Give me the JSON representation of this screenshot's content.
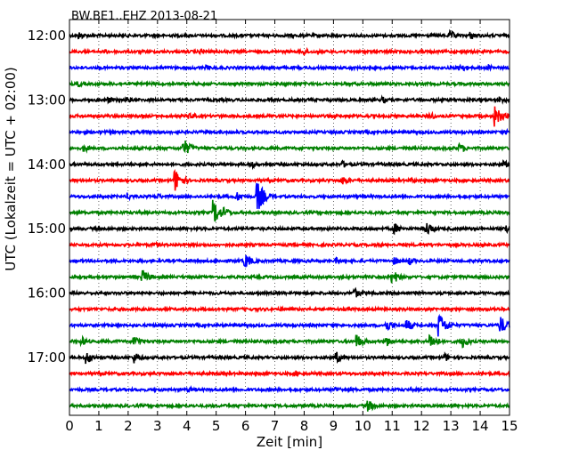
{
  "chart_data": {
    "type": "line",
    "title": "BW.BE1..EHZ 2013-08-21",
    "xlabel": "Zeit  [min]",
    "ylabel": "UTC (Lokalzeit = UTC + 02:00)",
    "xlim": [
      0,
      15
    ],
    "xticks": [
      "0",
      "1",
      "2",
      "3",
      "4",
      "5",
      "6",
      "7",
      "8",
      "9",
      "10",
      "11",
      "12",
      "13",
      "14",
      "15"
    ],
    "ytick_labels": [
      "12:00",
      "13:00",
      "14:00",
      "15:00",
      "16:00",
      "17:00"
    ],
    "grid": "vertical dotted",
    "colors": [
      "#000000",
      "#ff0000",
      "#0000ff",
      "#008000"
    ],
    "trace_interval_min": 15,
    "series": [
      {
        "start": "12:00",
        "color": "#000000",
        "events": [
          [
            0.35,
            0.3
          ],
          [
            13.0,
            0.35
          ],
          [
            13.7,
            0.3
          ]
        ]
      },
      {
        "start": "12:15",
        "color": "#ff0000",
        "events": [
          [
            1.2,
            0.2
          ],
          [
            4.5,
            0.25
          ],
          [
            8.0,
            0.3
          ]
        ]
      },
      {
        "start": "12:30",
        "color": "#0000ff",
        "events": [
          [
            4.7,
            0.2
          ],
          [
            13.3,
            0.4
          ],
          [
            14.3,
            0.3
          ]
        ]
      },
      {
        "start": "12:45",
        "color": "#008000",
        "events": [
          [
            0.3,
            0.25
          ]
        ]
      },
      {
        "start": "13:00",
        "color": "#000000",
        "events": [
          [
            1.3,
            0.3
          ],
          [
            1.9,
            0.3
          ],
          [
            10.7,
            0.25
          ],
          [
            14.7,
            0.3
          ]
        ]
      },
      {
        "start": "13:15",
        "color": "#ff0000",
        "events": [
          [
            4.1,
            0.3
          ],
          [
            12.3,
            0.3
          ],
          [
            14.5,
            0.8
          ]
        ]
      },
      {
        "start": "13:30",
        "color": "#0000ff",
        "events": [
          [
            14.9,
            0.2
          ]
        ]
      },
      {
        "start": "13:45",
        "color": "#008000",
        "events": [
          [
            0.5,
            0.3
          ],
          [
            3.9,
            0.7
          ],
          [
            13.3,
            0.4
          ]
        ]
      },
      {
        "start": "14:00",
        "color": "#000000",
        "events": [
          [
            6.2,
            0.3
          ],
          [
            9.3,
            0.3
          ],
          [
            14.8,
            0.3
          ]
        ]
      },
      {
        "start": "14:15",
        "color": "#ff0000",
        "events": [
          [
            3.6,
            0.9
          ],
          [
            9.3,
            0.4
          ],
          [
            11.7,
            0.2
          ]
        ]
      },
      {
        "start": "14:30",
        "color": "#0000ff",
        "events": [
          [
            2.0,
            0.3
          ],
          [
            3.0,
            0.25
          ],
          [
            6.4,
            1.25
          ],
          [
            5.7,
            0.4
          ]
        ]
      },
      {
        "start": "14:45",
        "color": "#008000",
        "events": [
          [
            4.9,
            1.05
          ],
          [
            5.3,
            0.4
          ]
        ]
      },
      {
        "start": "15:00",
        "color": "#000000",
        "events": [
          [
            11.1,
            0.4
          ],
          [
            12.2,
            0.5
          ],
          [
            14.9,
            0.4
          ]
        ]
      },
      {
        "start": "15:15",
        "color": "#ff0000",
        "events": [
          [
            2.9,
            0.25
          ]
        ]
      },
      {
        "start": "15:30",
        "color": "#0000ff",
        "events": [
          [
            6.0,
            0.55
          ],
          [
            9.1,
            0.25
          ],
          [
            11.1,
            0.3
          ],
          [
            11.6,
            0.3
          ]
        ]
      },
      {
        "start": "15:45",
        "color": "#008000",
        "events": [
          [
            2.5,
            0.55
          ],
          [
            11.0,
            0.6
          ]
        ]
      },
      {
        "start": "16:00",
        "color": "#000000",
        "events": [
          [
            9.7,
            0.45
          ],
          [
            14.8,
            0.2
          ]
        ]
      },
      {
        "start": "16:15",
        "color": "#ff0000",
        "events": [
          [
            14.5,
            0.15
          ]
        ]
      },
      {
        "start": "16:30",
        "color": "#0000ff",
        "events": [
          [
            10.8,
            0.5
          ],
          [
            11.5,
            0.5
          ],
          [
            12.6,
            1.0
          ],
          [
            14.7,
            0.7
          ]
        ]
      },
      {
        "start": "16:45",
        "color": "#008000",
        "events": [
          [
            0.4,
            0.4
          ],
          [
            2.2,
            0.5
          ],
          [
            9.8,
            0.55
          ],
          [
            10.8,
            0.4
          ],
          [
            12.3,
            0.65
          ],
          [
            13.4,
            0.5
          ]
        ]
      },
      {
        "start": "17:00",
        "color": "#000000",
        "events": [
          [
            0.6,
            0.5
          ],
          [
            2.2,
            0.45
          ],
          [
            9.1,
            0.45
          ],
          [
            12.8,
            0.35
          ]
        ]
      },
      {
        "start": "17:15",
        "color": "#ff0000",
        "events": [
          [
            7.7,
            0.25
          ]
        ]
      },
      {
        "start": "17:30",
        "color": "#0000ff",
        "events": [
          [
            4.1,
            0.2
          ],
          [
            9.1,
            0.25
          ]
        ]
      },
      {
        "start": "17:45",
        "color": "#008000",
        "events": [
          [
            10.2,
            0.45
          ]
        ]
      }
    ]
  }
}
